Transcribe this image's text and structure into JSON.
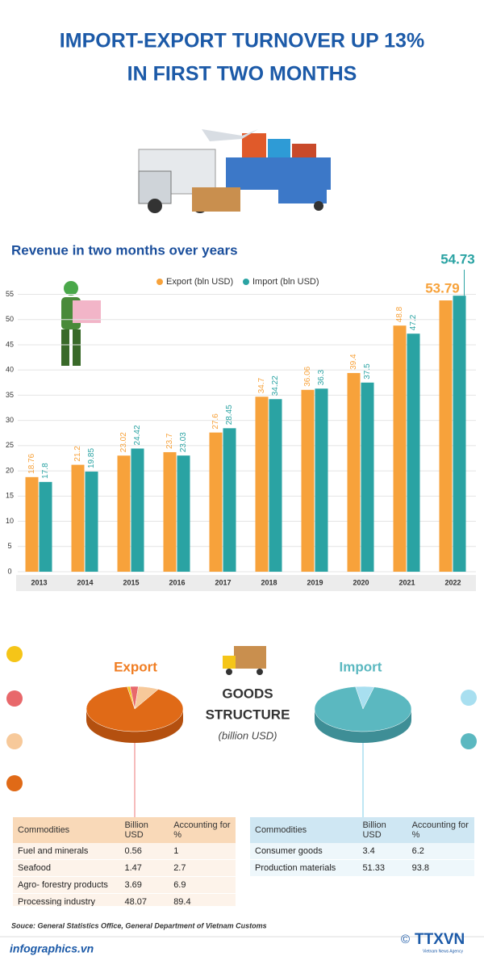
{
  "title_lines": [
    "IMPORT-EXPORT TURNOVER UP 13%",
    "IN FIRST TWO MONTHS"
  ],
  "chart_data": {
    "type": "bar",
    "title": "Revenue in two months over years",
    "categories": [
      "2013",
      "2014",
      "2015",
      "2016",
      "2017",
      "2018",
      "2019",
      "2020",
      "2021",
      "2022"
    ],
    "series": [
      {
        "name": "Export (bln USD)",
        "color": "#f7a23b",
        "values": [
          18.76,
          21.2,
          23.02,
          23.7,
          27.6,
          34.7,
          36.06,
          39.4,
          48.8,
          53.79
        ]
      },
      {
        "name": "Import (bln USD)",
        "color": "#2aa3a3",
        "values": [
          17.8,
          19.85,
          24.42,
          23.03,
          28.45,
          34.22,
          36.3,
          37.5,
          47.2,
          54.73
        ]
      }
    ],
    "ylim": [
      0,
      57
    ],
    "yticks": [
      0,
      5,
      10,
      15,
      20,
      25,
      30,
      35,
      40,
      45,
      50,
      55
    ],
    "grid": true,
    "legend": "top"
  },
  "goods": {
    "center_lines": [
      "GOODS",
      "STRUCTURE"
    ],
    "unit": "(billion USD)",
    "export": {
      "label": "Export",
      "headers": [
        "Commodities",
        "Billion USD",
        "Accounting for %"
      ],
      "rows": [
        [
          "Fuel and minerals",
          0.56,
          1
        ],
        [
          "Seafood",
          1.47,
          2.7
        ],
        [
          "Agro- forestry products",
          3.69,
          6.9
        ],
        [
          "Processing industry",
          48.07,
          89.4
        ]
      ],
      "colors": [
        "#f5c518",
        "#e8686b",
        "#f7c99a",
        "#e06a17"
      ]
    },
    "import": {
      "label": "Import",
      "headers": [
        "Commodities",
        "Billion USD",
        "Accounting for %"
      ],
      "rows": [
        [
          "Consumer goods",
          3.4,
          6.2
        ],
        [
          "Production materials",
          51.33,
          93.8
        ]
      ],
      "colors": [
        "#a8dff0",
        "#5bb8c0"
      ]
    }
  },
  "source": "Souce: General Statistics Office, General Department of Vietnam Customs",
  "footer": {
    "site": "infographics.vn",
    "copyright": "©",
    "logo": "TTXVN",
    "agency": "Vietnam News Agency"
  }
}
